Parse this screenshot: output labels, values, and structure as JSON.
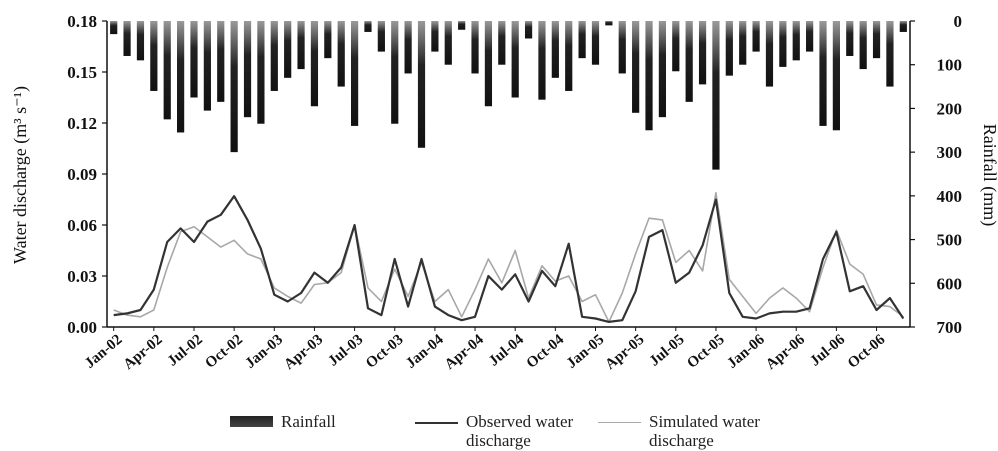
{
  "chart_data": {
    "type": "bar-line",
    "y_label": "Water discharge (m³ s⁻¹)",
    "y2_label": "Rainfall (mm)",
    "categories": [
      "Jan-02",
      null,
      null,
      "Apr-02",
      null,
      null,
      "Jul-02",
      null,
      null,
      "Oct-02",
      null,
      null,
      "Jan-03",
      null,
      null,
      "Apr-03",
      null,
      null,
      "Jul-03",
      null,
      null,
      "Oct-03",
      null,
      null,
      "Jan-04",
      null,
      null,
      "Apr-04",
      null,
      null,
      "Jul-04",
      null,
      null,
      "Oct-04",
      null,
      null,
      "Jan-05",
      null,
      null,
      "Apr-05",
      null,
      null,
      "Jul-05",
      null,
      null,
      "Oct-05",
      null,
      null,
      "Jan-06",
      null,
      null,
      "Apr-06",
      null,
      null,
      "Jul-06",
      null,
      null,
      "Oct-06",
      null,
      null
    ],
    "ylim": [
      0,
      0.18
    ],
    "yticks": [
      {
        "value": 0,
        "label": "0.00"
      },
      0.03,
      0.06,
      0.09,
      0.12,
      0.15,
      0.18
    ],
    "y2lim": [
      0,
      700
    ],
    "y2_inverted": true,
    "y2ticks": [
      0,
      100,
      200,
      300,
      400,
      500,
      600,
      700
    ],
    "series": [
      {
        "name": "Rainfall",
        "type": "bar",
        "axis": "y2",
        "color": "#222222",
        "values": [
          30,
          80,
          90,
          160,
          225,
          255,
          175,
          205,
          185,
          300,
          220,
          235,
          160,
          130,
          110,
          195,
          85,
          150,
          240,
          25,
          70,
          235,
          120,
          290,
          70,
          100,
          20,
          120,
          195,
          100,
          175,
          40,
          180,
          130,
          160,
          85,
          100,
          10,
          120,
          210,
          250,
          220,
          115,
          185,
          145,
          340,
          125,
          100,
          70,
          150,
          105,
          90,
          70,
          240,
          250,
          80,
          110,
          85,
          150,
          25
        ]
      },
      {
        "name": "Observed water discharge",
        "type": "line",
        "color": "#333333",
        "width": 2.2,
        "values": [
          0.007,
          0.008,
          0.01,
          0.022,
          0.05,
          0.058,
          0.05,
          0.062,
          0.066,
          0.077,
          0.063,
          0.046,
          0.019,
          0.015,
          0.02,
          0.032,
          0.026,
          0.035,
          0.06,
          0.011,
          0.007,
          0.04,
          0.012,
          0.04,
          0.012,
          0.007,
          0.004,
          0.006,
          0.03,
          0.022,
          0.031,
          0.015,
          0.033,
          0.024,
          0.049,
          0.006,
          0.005,
          0.003,
          0.004,
          0.021,
          0.053,
          0.057,
          0.026,
          0.032,
          0.048,
          0.075,
          0.02,
          0.006,
          0.005,
          0.008,
          0.009,
          0.009,
          0.011,
          0.04,
          0.056,
          0.021,
          0.024,
          0.01,
          0.017,
          0.005
        ]
      },
      {
        "name": "Simulated water discharge",
        "type": "line",
        "color": "#a8a8a8",
        "width": 1.6,
        "values": [
          0.01,
          0.007,
          0.006,
          0.01,
          0.035,
          0.056,
          0.059,
          0.053,
          0.047,
          0.051,
          0.043,
          0.04,
          0.023,
          0.018,
          0.014,
          0.025,
          0.026,
          0.032,
          0.06,
          0.023,
          0.015,
          0.034,
          0.018,
          0.038,
          0.015,
          0.022,
          0.006,
          0.022,
          0.04,
          0.026,
          0.045,
          0.017,
          0.036,
          0.027,
          0.03,
          0.015,
          0.019,
          0.003,
          0.02,
          0.043,
          0.064,
          0.063,
          0.038,
          0.045,
          0.033,
          0.079,
          0.028,
          0.018,
          0.008,
          0.017,
          0.023,
          0.017,
          0.009,
          0.035,
          0.057,
          0.037,
          0.031,
          0.013,
          0.012,
          0.006
        ]
      }
    ]
  }
}
